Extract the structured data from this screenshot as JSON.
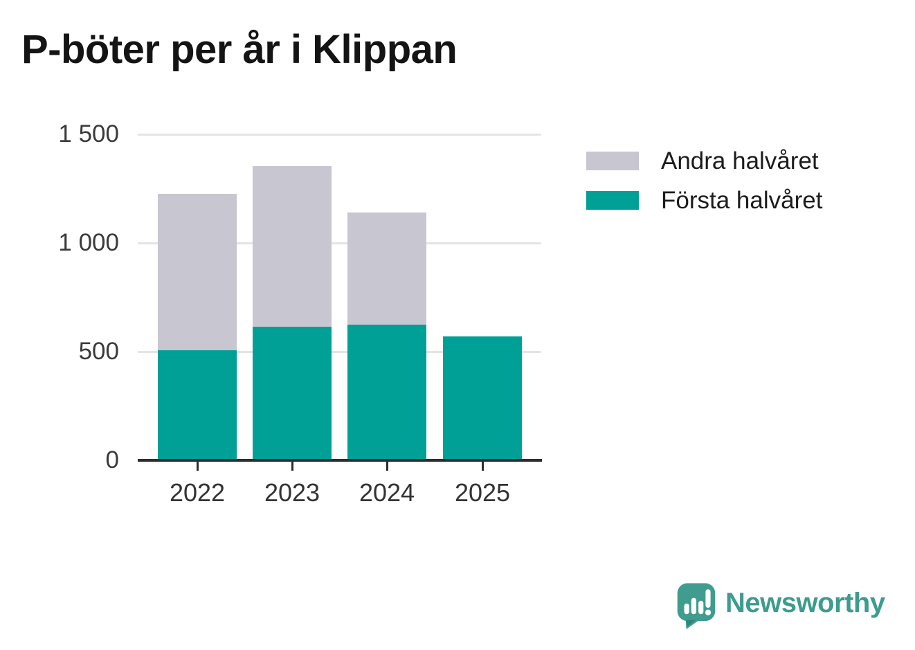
{
  "title": "P-böter per år i Klippan",
  "legend": [
    {
      "label": "Andra halvåret",
      "color": "#c8c6d0"
    },
    {
      "label": "Första halvåret",
      "color": "#00a096"
    }
  ],
  "chart_data": {
    "type": "bar",
    "stacked": true,
    "title": "P-böter per år i Klippan",
    "categories": [
      "2022",
      "2023",
      "2024",
      "2025"
    ],
    "series": [
      {
        "name": "Första halvåret",
        "color": "#00a096",
        "values": [
          505,
          615,
          625,
          570
        ]
      },
      {
        "name": "Andra halvåret",
        "color": "#c8c6d0",
        "values": [
          720,
          740,
          515,
          0
        ]
      }
    ],
    "totals": [
      1225,
      1355,
      1140,
      570
    ],
    "xlabel": "",
    "ylabel": "",
    "ylim": [
      0,
      1500
    ],
    "yticks": [
      0,
      500,
      1000,
      1500
    ],
    "ytick_labels": [
      "0",
      "500",
      "1 000",
      "1 500"
    ],
    "grid": true,
    "gridline_color": "#e4e4e4",
    "axis_color": "#2d2d2d",
    "legend_position": "upper-right"
  },
  "branding": {
    "wordmark": "Newsworthy",
    "logo_icon": "newsworthy-speech-bubble-chart-icon",
    "color": "#3d9c8e"
  }
}
